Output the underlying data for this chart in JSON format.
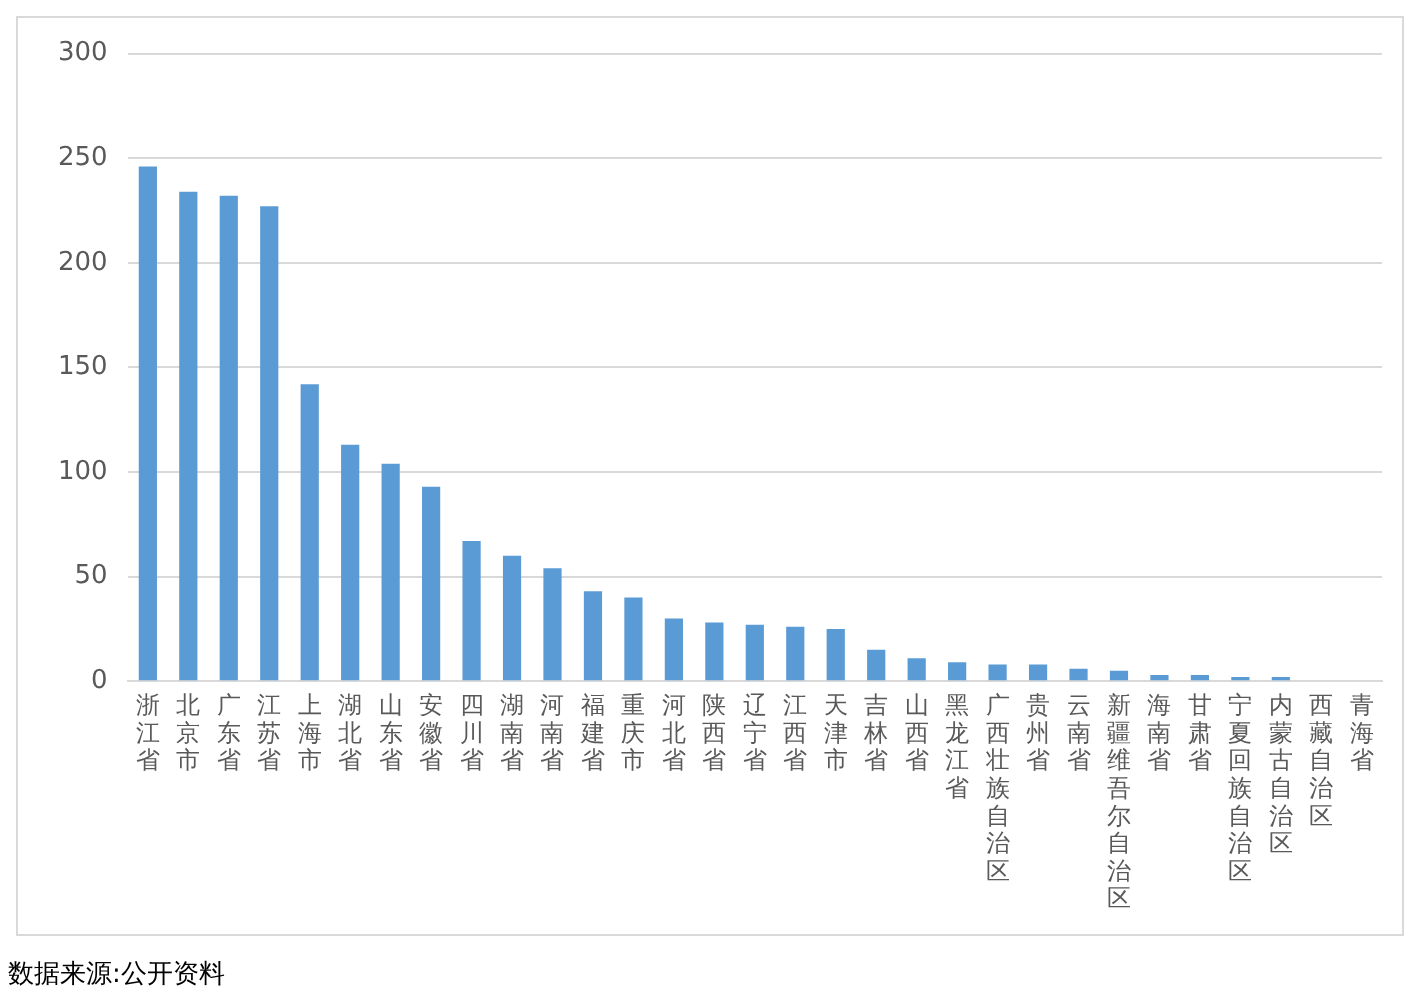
{
  "chart_data": {
    "type": "bar",
    "categories": [
      "浙江省",
      "北京市",
      "广东省",
      "江苏省",
      "上海市",
      "湖北省",
      "山东省",
      "安徽省",
      "四川省",
      "湖南省",
      "河南省",
      "福建省",
      "重庆市",
      "河北省",
      "陕西省",
      "辽宁省",
      "江西省",
      "天津市",
      "吉林省",
      "山西省",
      "黑龙江省",
      "广西壮族自治区",
      "贵州省",
      "云南省",
      "新疆维吾尔自治区",
      "海南省",
      "甘肃省",
      "宁夏回族自治区",
      "内蒙古自治区",
      "西藏自治区",
      "青海省"
    ],
    "values": [
      246,
      234,
      232,
      227,
      142,
      113,
      104,
      93,
      67,
      60,
      54,
      43,
      40,
      30,
      28,
      27,
      26,
      25,
      15,
      11,
      9,
      8,
      8,
      6,
      5,
      3,
      3,
      2,
      2,
      0,
      0
    ],
    "color": "#5b9bd5",
    "ylim": [
      0,
      300
    ],
    "yticks": [
      0,
      50,
      100,
      150,
      200,
      250,
      300
    ],
    "grid": "y",
    "annotations": [
      "数据来源:公开资料"
    ]
  }
}
